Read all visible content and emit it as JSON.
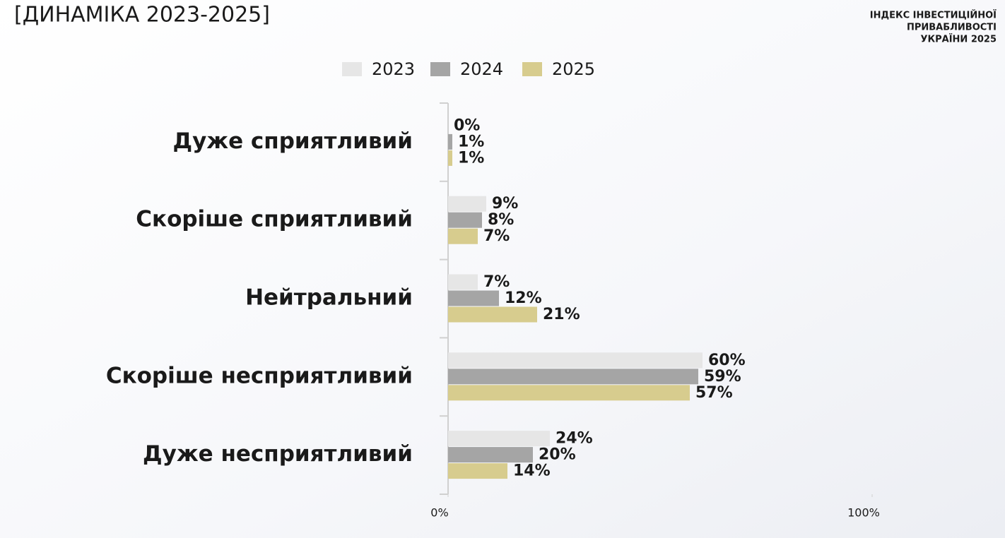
{
  "chart_data": {
    "type": "hbar",
    "title": "[ДИНАМІКА 2023-2025]",
    "brand": [
      "ІНДЕКС ІНВЕСТИЦІЙНОЇ",
      "ПРИВАБЛИВОСТІ",
      "УКРАЇНИ 2025"
    ],
    "categories": [
      "Дуже сприятливий",
      "Скоріше сприятливий",
      "Нейтральний",
      "Скоріше несприятливий",
      "Дуже несприятливий"
    ],
    "series": [
      {
        "name": "2023",
        "color": "#e6e6e6",
        "values": [
          0,
          9,
          7,
          60,
          24
        ],
        "value_labels": [
          "0%",
          "9%",
          "7%",
          "60%",
          "24%"
        ]
      },
      {
        "name": "2024",
        "color": "#a5a5a5",
        "values": [
          1,
          8,
          12,
          59,
          20
        ],
        "value_labels": [
          "1%",
          "8%",
          "12%",
          "59%",
          "20%"
        ]
      },
      {
        "name": "2025",
        "color": "#d7cc8e",
        "values": [
          1,
          7,
          21,
          57,
          14
        ],
        "value_labels": [
          "1%",
          "7%",
          "21%",
          "57%",
          "14%"
        ]
      }
    ],
    "xlim": [
      0,
      100
    ],
    "xticks": [
      {
        "value": 0,
        "label": "0%"
      },
      {
        "value": 100,
        "label": "100%"
      }
    ],
    "legend": "top"
  }
}
